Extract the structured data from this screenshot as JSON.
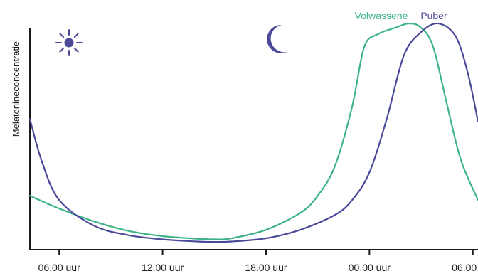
{
  "chart_data": {
    "type": "line",
    "title": "",
    "xlabel": "",
    "ylabel": "Melatonineconcentratie",
    "x_ticks": [
      "06.00 uur",
      "12.00 uur",
      "18.00 uur",
      "00.00 uur",
      "06.00 uur"
    ],
    "x_tick_hours": [
      6,
      12,
      18,
      24,
      30
    ],
    "xlim": [
      4.3,
      30.3
    ],
    "ylim": [
      0,
      100
    ],
    "grid": false,
    "legend_position": "top-right",
    "icons": [
      "sun-icon",
      "moon-icon"
    ],
    "series": [
      {
        "name": "Volwassene",
        "color": "#3db38a",
        "points": [
          [
            4.3,
            22
          ],
          [
            6,
            16
          ],
          [
            8,
            10
          ],
          [
            10,
            5.5
          ],
          [
            12,
            3
          ],
          [
            14,
            1.8
          ],
          [
            15.1,
            1.5
          ],
          [
            16,
            2
          ],
          [
            18,
            6
          ],
          [
            20,
            14
          ],
          [
            21,
            22
          ],
          [
            22,
            36
          ],
          [
            23,
            64
          ],
          [
            23.7,
            92
          ],
          [
            24.5,
            98
          ],
          [
            25.5,
            101
          ],
          [
            26.3,
            103
          ],
          [
            27,
            101
          ],
          [
            27.7,
            92
          ],
          [
            28.5,
            65
          ],
          [
            29.3,
            39
          ],
          [
            30.3,
            20
          ]
        ]
      },
      {
        "name": "Puber",
        "color": "#4b4a99",
        "points": [
          [
            4.3,
            58
          ],
          [
            5,
            38
          ],
          [
            6,
            20
          ],
          [
            8,
            8
          ],
          [
            10,
            3.5
          ],
          [
            12,
            1.5
          ],
          [
            14,
            0.5
          ],
          [
            15,
            0.3
          ],
          [
            16,
            0.5
          ],
          [
            18,
            2
          ],
          [
            20,
            6
          ],
          [
            22,
            13
          ],
          [
            23,
            20
          ],
          [
            24,
            33
          ],
          [
            25,
            58
          ],
          [
            26,
            88
          ],
          [
            27,
            99
          ],
          [
            28,
            103
          ],
          [
            29,
            97
          ],
          [
            29.7,
            80
          ],
          [
            30.3,
            57
          ]
        ]
      }
    ]
  }
}
